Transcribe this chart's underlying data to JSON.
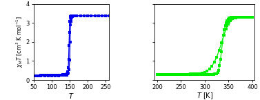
{
  "blue_color": "#0000EE",
  "green_color": "#00EE00",
  "left_xlim": [
    50,
    260
  ],
  "right_xlim": [
    195,
    405
  ],
  "ylim": [
    0,
    4
  ],
  "left_xticks": [
    50,
    100,
    150,
    200,
    250
  ],
  "right_xticks": [
    200,
    250,
    300,
    350,
    400
  ],
  "yticks": [
    0,
    1,
    2,
    3,
    4
  ],
  "ylabel": "$\\chi_{M}T$ [cm$^{3}$ K mol$^{-1}$]",
  "left_xlabel": "$T$",
  "right_xlabel": "$T$ [K]",
  "marker": "s",
  "markersize": 3.5,
  "linewidth": 0.9,
  "blue_heating": {
    "T": [
      50,
      55,
      60,
      65,
      70,
      75,
      80,
      85,
      90,
      95,
      100,
      105,
      110,
      115,
      120,
      125,
      130,
      135,
      140,
      143,
      146,
      148,
      150,
      151,
      152,
      153,
      154,
      155,
      156,
      158,
      160,
      165,
      170,
      180,
      190,
      200,
      210,
      220,
      230,
      240,
      250,
      260
    ],
    "val": [
      0.23,
      0.23,
      0.23,
      0.23,
      0.24,
      0.24,
      0.24,
      0.24,
      0.25,
      0.25,
      0.25,
      0.26,
      0.26,
      0.26,
      0.27,
      0.27,
      0.28,
      0.29,
      0.3,
      0.32,
      0.38,
      0.55,
      1.05,
      2.0,
      2.9,
      3.1,
      3.2,
      3.3,
      3.32,
      3.35,
      3.37,
      3.38,
      3.38,
      3.38,
      3.38,
      3.38,
      3.38,
      3.38,
      3.38,
      3.38,
      3.38,
      3.38
    ]
  },
  "blue_cooling": {
    "T": [
      260,
      250,
      240,
      230,
      220,
      210,
      200,
      190,
      180,
      170,
      165,
      160,
      158,
      156,
      154,
      153,
      152,
      151,
      150,
      149,
      148,
      147,
      146,
      145,
      144,
      143,
      142,
      141,
      140,
      135,
      130,
      125,
      120,
      110,
      100,
      90,
      80,
      70,
      60,
      50
    ],
    "val": [
      3.38,
      3.38,
      3.38,
      3.38,
      3.38,
      3.38,
      3.38,
      3.38,
      3.38,
      3.38,
      3.38,
      3.38,
      3.38,
      3.38,
      3.38,
      3.37,
      3.35,
      3.3,
      3.1,
      2.5,
      1.8,
      1.1,
      0.65,
      0.42,
      0.32,
      0.27,
      0.26,
      0.25,
      0.25,
      0.24,
      0.24,
      0.24,
      0.23,
      0.23,
      0.23,
      0.23,
      0.23,
      0.23,
      0.22,
      0.22
    ]
  },
  "green_heating": {
    "T": [
      200,
      205,
      210,
      215,
      220,
      225,
      230,
      235,
      240,
      245,
      250,
      255,
      260,
      265,
      270,
      275,
      280,
      285,
      290,
      295,
      300,
      305,
      310,
      315,
      320,
      325,
      330,
      335,
      340,
      345,
      347,
      349,
      351,
      353,
      355,
      358,
      360,
      363,
      365,
      368,
      370,
      373,
      375,
      378,
      380,
      383,
      385,
      390,
      395,
      400
    ],
    "val": [
      0.3,
      0.3,
      0.3,
      0.3,
      0.3,
      0.3,
      0.3,
      0.3,
      0.3,
      0.3,
      0.3,
      0.3,
      0.3,
      0.3,
      0.31,
      0.31,
      0.32,
      0.33,
      0.34,
      0.36,
      0.4,
      0.47,
      0.58,
      0.73,
      0.95,
      1.2,
      1.55,
      1.95,
      2.35,
      2.7,
      2.85,
      2.95,
      3.05,
      3.12,
      3.18,
      3.22,
      3.25,
      3.27,
      3.28,
      3.29,
      3.3,
      3.3,
      3.3,
      3.3,
      3.3,
      3.3,
      3.3,
      3.3,
      3.3,
      3.3
    ]
  },
  "green_cooling": {
    "T": [
      400,
      395,
      390,
      385,
      380,
      378,
      375,
      373,
      370,
      368,
      365,
      363,
      360,
      358,
      355,
      353,
      351,
      349,
      347,
      345,
      343,
      341,
      339,
      337,
      335,
      333,
      331,
      329,
      327,
      325,
      323,
      321,
      319,
      317,
      315,
      310,
      305,
      300,
      295,
      290,
      285,
      280,
      275,
      270,
      265,
      260,
      250,
      240,
      230,
      220,
      210,
      200
    ],
    "val": [
      3.3,
      3.3,
      3.3,
      3.3,
      3.3,
      3.3,
      3.3,
      3.3,
      3.3,
      3.3,
      3.3,
      3.3,
      3.3,
      3.3,
      3.3,
      3.28,
      3.25,
      3.2,
      3.12,
      3.0,
      2.85,
      2.65,
      2.35,
      1.95,
      1.5,
      1.1,
      0.75,
      0.52,
      0.4,
      0.34,
      0.32,
      0.31,
      0.3,
      0.3,
      0.3,
      0.3,
      0.3,
      0.3,
      0.3,
      0.3,
      0.3,
      0.3,
      0.3,
      0.3,
      0.3,
      0.3,
      0.3,
      0.3,
      0.3,
      0.3,
      0.3,
      0.3
    ]
  }
}
